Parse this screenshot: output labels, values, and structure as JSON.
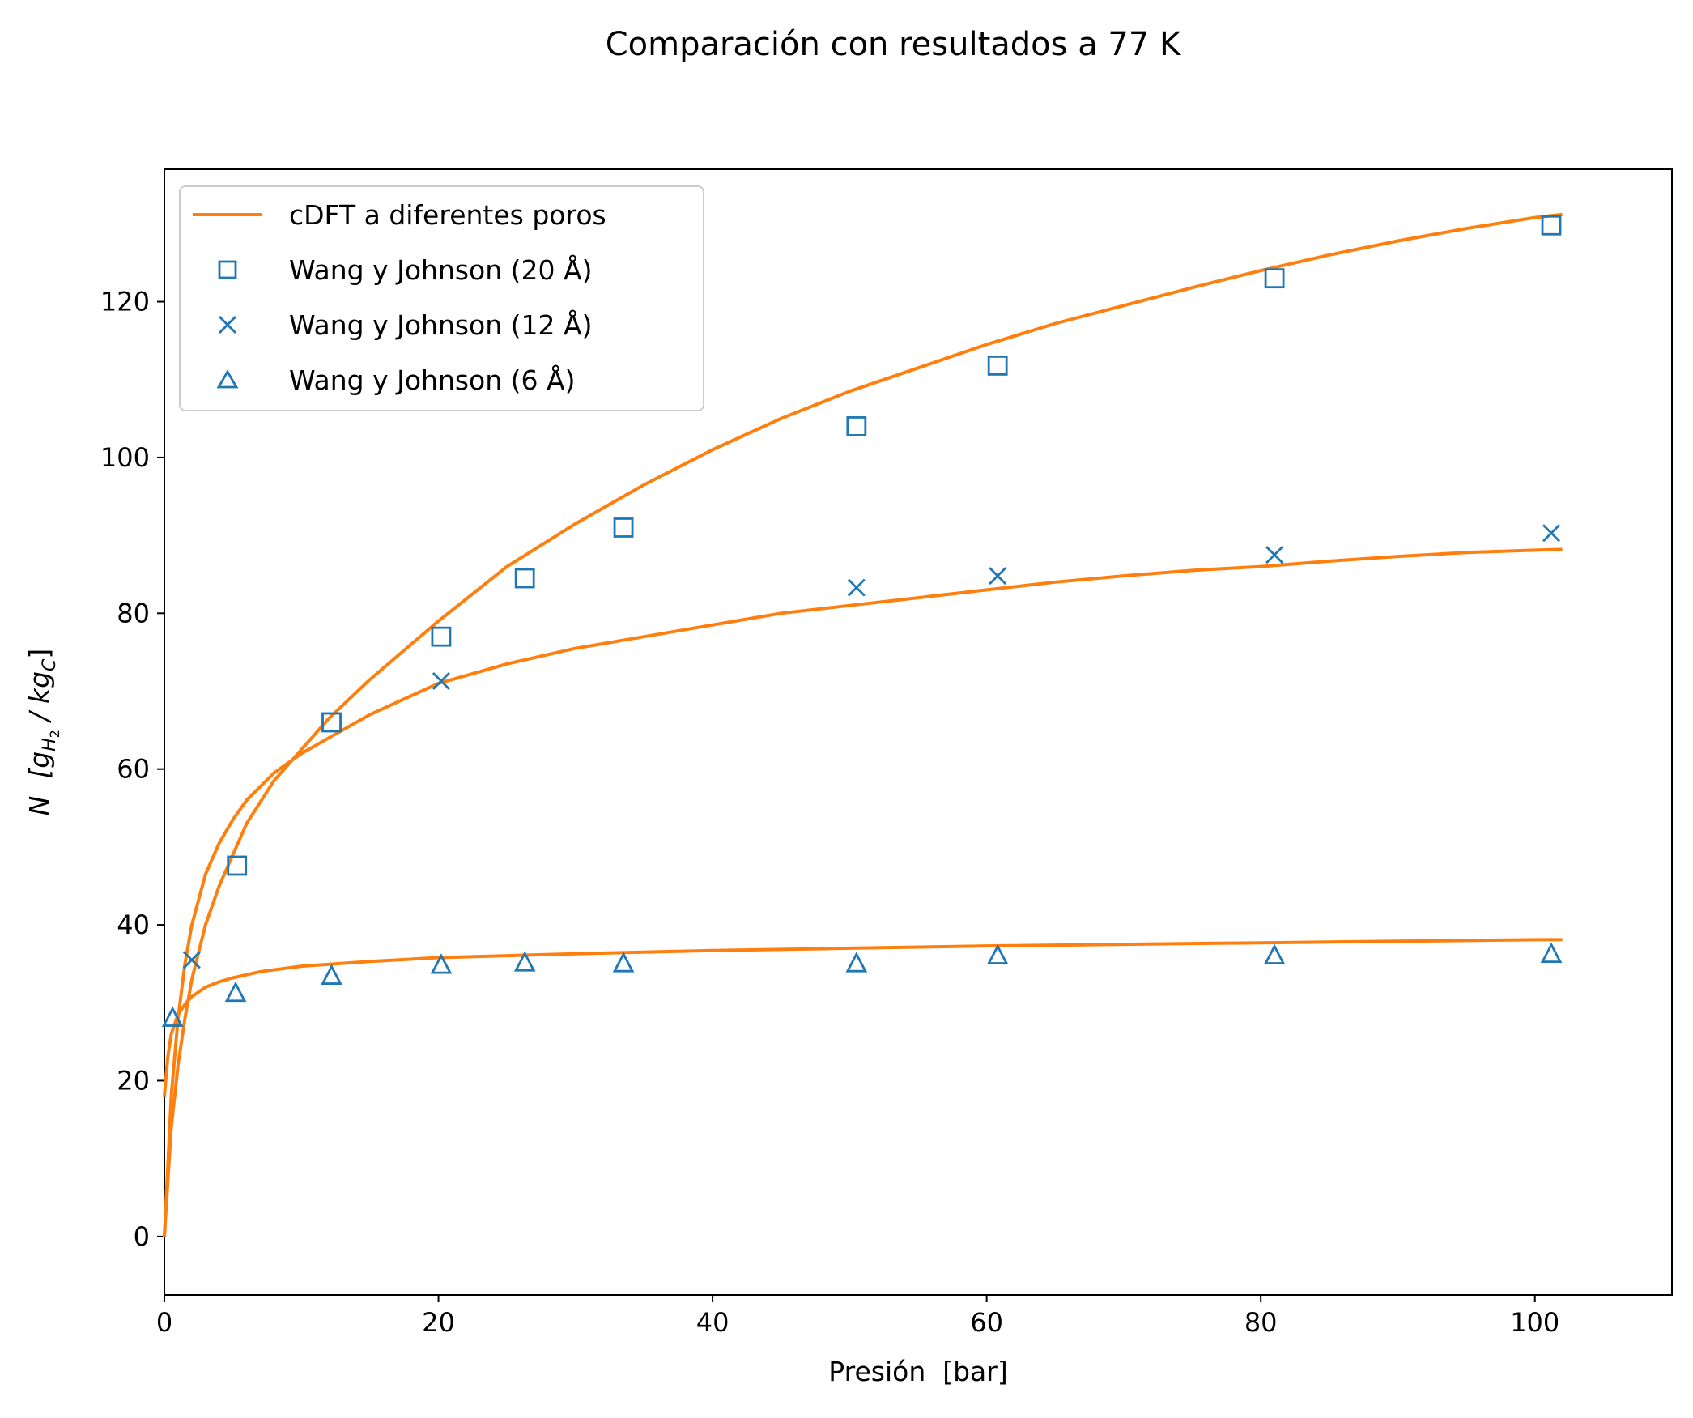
{
  "chart_data": {
    "type": "line",
    "title": "Comparación con resultados a 77 K",
    "xlabel": "Presión  [bar]",
    "ylabel": {
      "main": "N",
      "unit_prefix": "[g",
      "sub1": "H",
      "sub2": "2",
      "middle": " / kg",
      "sub3": "C",
      "suffix": "]"
    },
    "xlim": [
      0,
      110
    ],
    "ylim": [
      -7.5,
      137
    ],
    "xticks": [
      0,
      20,
      40,
      60,
      80,
      100
    ],
    "yticks": [
      0,
      20,
      40,
      60,
      80,
      100,
      120
    ],
    "grid": false,
    "legend_position": "upper-left",
    "colors": {
      "line": "#ff7f0e",
      "markers": "#1f77b4"
    },
    "legend": [
      {
        "label": "cDFT a diferentes poros",
        "marker": "line"
      },
      {
        "label": "Wang y Johnson (20 Å)",
        "marker": "square"
      },
      {
        "label": "Wang y Johnson (12 Å)",
        "marker": "x"
      },
      {
        "label": "Wang y Johnson (6 Å)",
        "marker": "triangle"
      }
    ],
    "curves": [
      {
        "pore": "20 Å",
        "x": [
          0,
          0.5,
          1,
          1.5,
          2,
          3,
          4,
          5,
          6,
          8,
          10,
          12,
          15,
          20,
          25,
          30,
          35,
          40,
          45,
          50,
          55,
          60,
          65,
          70,
          75,
          80,
          85,
          90,
          95,
          100,
          102
        ],
        "y": [
          0,
          14,
          22,
          28,
          33,
          40,
          45,
          49,
          53,
          58.5,
          62.5,
          66.5,
          71.5,
          79,
          86,
          91.5,
          96.5,
          101,
          105,
          108.5,
          111.5,
          114.5,
          117.2,
          119.5,
          121.8,
          124,
          126,
          127.8,
          129.4,
          130.8,
          131.2
        ]
      },
      {
        "pore": "12 Å",
        "x": [
          0,
          0.5,
          1,
          1.5,
          2,
          3,
          4,
          5,
          6,
          8,
          10,
          12,
          15,
          20,
          25,
          30,
          35,
          40,
          45,
          50,
          55,
          60,
          65,
          70,
          75,
          80,
          85,
          90,
          95,
          100,
          102
        ],
        "y": [
          0,
          18,
          28,
          35,
          40,
          46.5,
          50.5,
          53.5,
          56,
          59.5,
          62,
          64,
          67,
          71,
          73.5,
          75.5,
          77,
          78.5,
          80,
          81,
          82,
          83,
          84,
          84.8,
          85.5,
          86,
          86.7,
          87.3,
          87.8,
          88.1,
          88.2
        ]
      },
      {
        "pore": "6 Å",
        "x": [
          0,
          0.25,
          0.5,
          1,
          1.5,
          2,
          3,
          4,
          5,
          7,
          10,
          15,
          20,
          30,
          40,
          50,
          60,
          70,
          80,
          90,
          100,
          102
        ],
        "y": [
          18,
          23,
          26,
          28.5,
          29.8,
          30.8,
          32,
          32.7,
          33.2,
          34,
          34.7,
          35.3,
          35.8,
          36.3,
          36.7,
          37,
          37.3,
          37.5,
          37.7,
          37.9,
          38.1,
          38.1
        ]
      }
    ],
    "series": [
      {
        "name": "Wang y Johnson (20 Å)",
        "marker": "square",
        "x": [
          5.3,
          12.2,
          20.2,
          26.3,
          33.5,
          50.5,
          60.8,
          81,
          101.2
        ],
        "y": [
          47.6,
          66,
          77,
          84.5,
          91,
          104,
          111.8,
          123,
          129.8
        ]
      },
      {
        "name": "Wang y Johnson (12 Å)",
        "marker": "x",
        "x": [
          2,
          20.2,
          50.5,
          60.8,
          81,
          101.2
        ],
        "y": [
          35.5,
          71.3,
          83.3,
          84.8,
          87.5,
          90.3
        ]
      },
      {
        "name": "Wang y Johnson (6 Å)",
        "marker": "triangle",
        "x": [
          0.6,
          5.2,
          12.2,
          20.2,
          26.3,
          33.5,
          50.5,
          60.8,
          81,
          101.2
        ],
        "y": [
          28,
          31.2,
          33.4,
          34.8,
          35.1,
          35,
          35,
          36,
          36,
          36.2
        ]
      }
    ]
  }
}
